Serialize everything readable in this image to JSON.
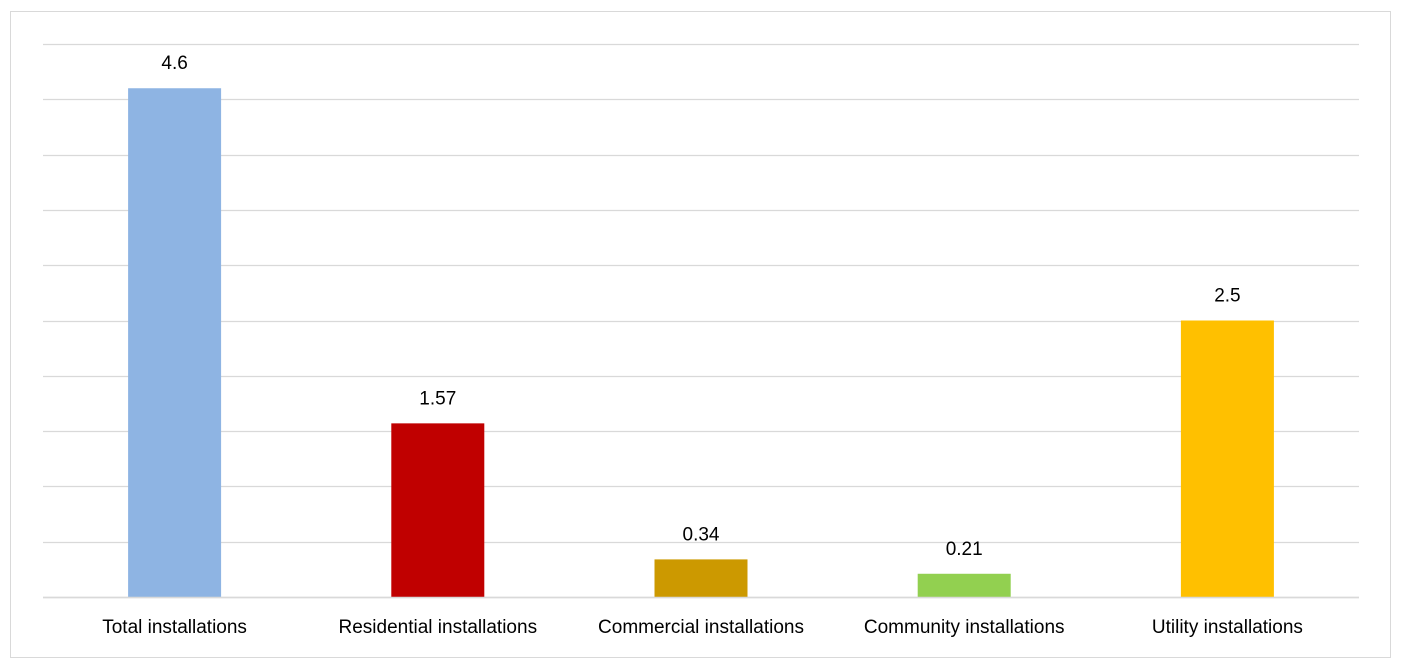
{
  "chart_data": {
    "type": "bar",
    "categories": [
      "Total installations",
      "Residential installations",
      "Commercial installations",
      "Community installations",
      "Utility installations"
    ],
    "values": [
      4.6,
      1.57,
      0.34,
      0.21,
      2.5
    ],
    "value_labels": [
      "4.6",
      "1.57",
      "0.34",
      "0.21",
      "2.5"
    ],
    "colors": [
      "#8eb4e3",
      "#c00000",
      "#cc9900",
      "#92d050",
      "#ffc000"
    ],
    "ylim": [
      0,
      5
    ],
    "grid_step": 0.5,
    "grid": true,
    "y_tick_labels_visible": false,
    "legend": "none"
  }
}
